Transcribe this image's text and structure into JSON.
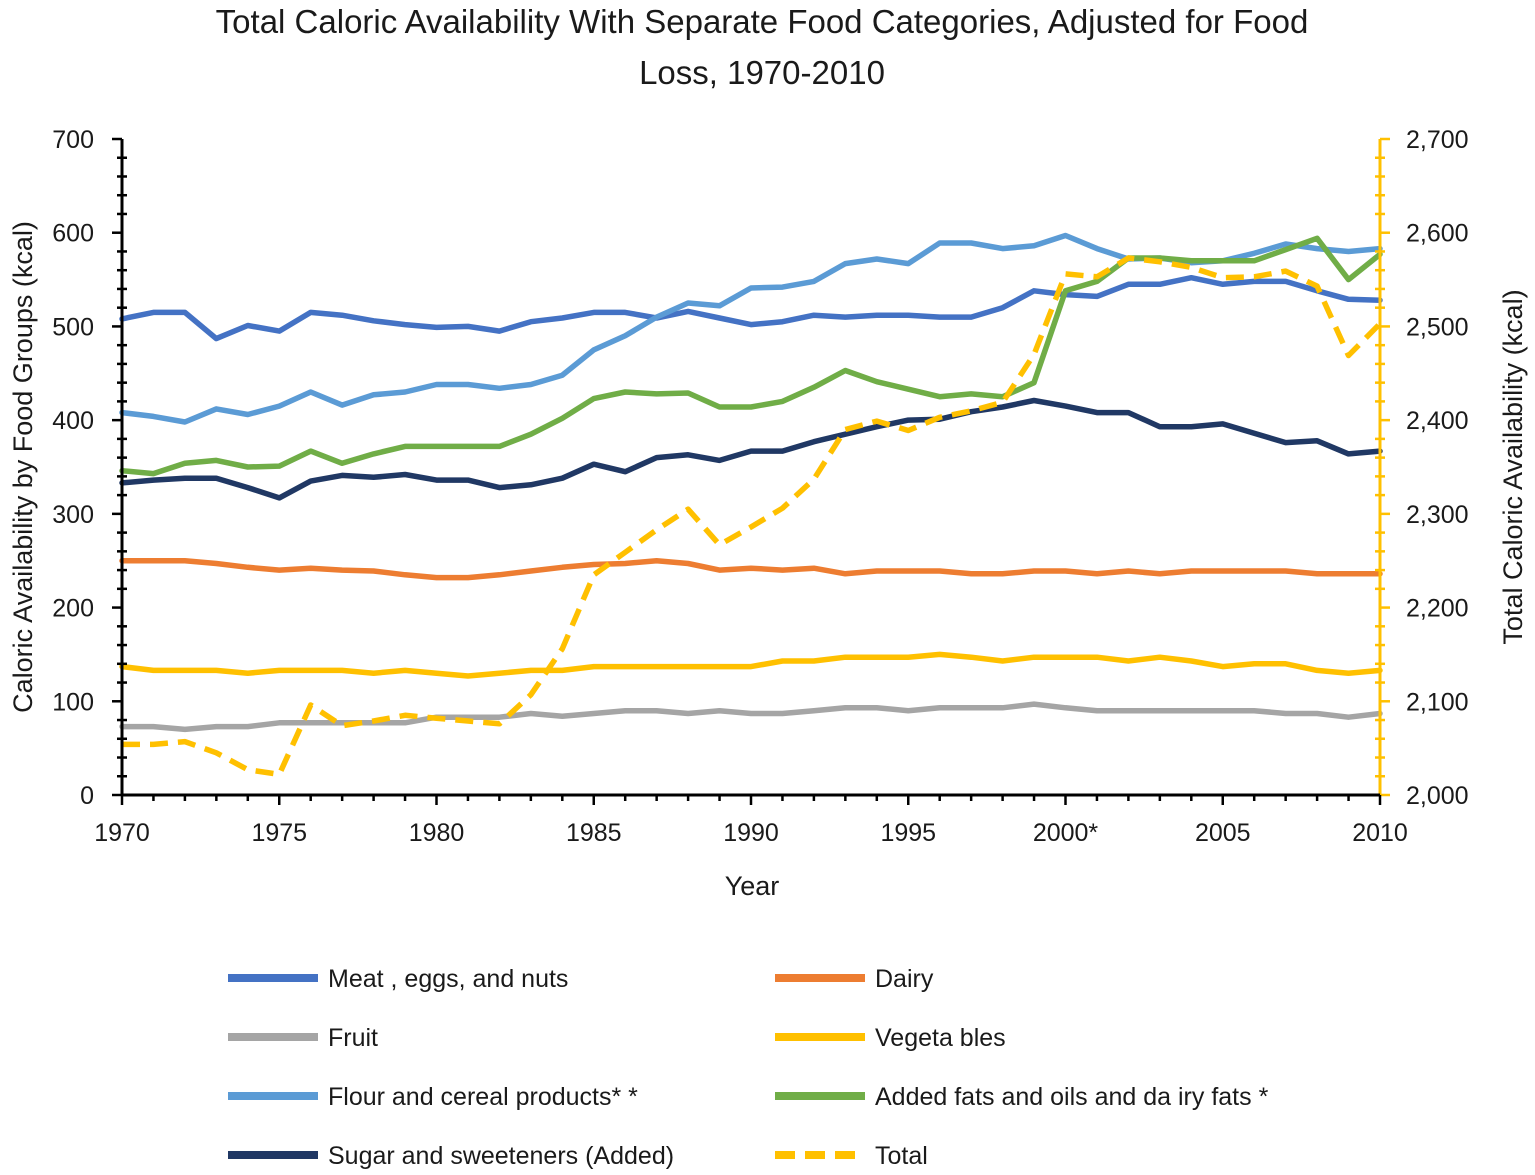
{
  "chart_data": {
    "type": "line",
    "title_lines": [
      "Total Caloric Availability With Separate Food Categories, Adjusted for Food",
      "Loss, 1970-2010"
    ],
    "xlabel": "Year",
    "ylabel_left": "Caloric Availability by Food Groups (kcal)",
    "ylabel_right": "Total Caloric Availability (kcal)",
    "xlim": [
      1970,
      2010
    ],
    "ylim_left": [
      0,
      700
    ],
    "ylim_right": [
      2000,
      2700
    ],
    "x_tick_labels": [
      "1970",
      "1975",
      "1980",
      "1985",
      "1990",
      "1995",
      "2000*",
      "2005",
      "2010"
    ],
    "y_left_tick_labels": [
      "0",
      "100",
      "200",
      "300",
      "400",
      "500",
      "600",
      "700"
    ],
    "y_right_tick_labels": [
      "2,000",
      "2,100",
      "2,200",
      "2,300",
      "2,400",
      "2,500",
      "2,600",
      "2,700"
    ],
    "grid": false,
    "legend_position": "bottom",
    "x": [
      1970,
      1971,
      1972,
      1973,
      1974,
      1975,
      1976,
      1977,
      1978,
      1979,
      1980,
      1981,
      1982,
      1983,
      1984,
      1985,
      1986,
      1987,
      1988,
      1989,
      1990,
      1991,
      1992,
      1993,
      1994,
      1995,
      1996,
      1997,
      1998,
      1999,
      2000,
      2001,
      2002,
      2003,
      2004,
      2005,
      2006,
      2007,
      2008,
      2009,
      2010
    ],
    "series": [
      {
        "name": "Meat, eggs, and nuts",
        "axis": "left",
        "color": "#4472C4",
        "dash": false,
        "values": [
          508,
          515,
          515,
          487,
          501,
          495,
          515,
          512,
          506,
          502,
          499,
          500,
          495,
          505,
          509,
          515,
          515,
          509,
          516,
          509,
          502,
          505,
          512,
          510,
          512,
          512,
          510,
          510,
          520,
          538,
          534,
          532,
          545,
          545,
          552,
          545,
          548,
          548,
          538,
          529,
          528
        ]
      },
      {
        "name": "Dairy",
        "axis": "left",
        "color": "#ED7D31",
        "dash": false,
        "values": [
          250,
          250,
          250,
          247,
          243,
          240,
          242,
          240,
          239,
          235,
          232,
          232,
          235,
          239,
          243,
          246,
          247,
          250,
          247,
          240,
          242,
          240,
          242,
          236,
          239,
          239,
          239,
          236,
          236,
          239,
          239,
          236,
          239,
          236,
          239,
          239,
          239,
          239,
          236,
          236,
          236
        ]
      },
      {
        "name": "Fruit",
        "axis": "left",
        "color": "#A5A5A5",
        "dash": false,
        "values": [
          73,
          73,
          70,
          73,
          73,
          77,
          77,
          77,
          77,
          77,
          83,
          83,
          83,
          87,
          84,
          87,
          90,
          90,
          87,
          90,
          87,
          87,
          90,
          93,
          93,
          90,
          93,
          93,
          93,
          97,
          93,
          90,
          90,
          90,
          90,
          90,
          90,
          87,
          87,
          83,
          87
        ]
      },
      {
        "name": "Vegetables",
        "axis": "left",
        "color": "#FFC000",
        "dash": false,
        "values": [
          137,
          133,
          133,
          133,
          130,
          133,
          133,
          133,
          130,
          133,
          130,
          127,
          130,
          133,
          133,
          137,
          137,
          137,
          137,
          137,
          137,
          143,
          143,
          147,
          147,
          147,
          150,
          147,
          143,
          147,
          147,
          147,
          143,
          147,
          143,
          137,
          140,
          140,
          133,
          130,
          133
        ]
      },
      {
        "name": "Flour and cereal products**",
        "axis": "left",
        "color": "#5B9BD5",
        "dash": false,
        "values": [
          408,
          404,
          398,
          412,
          406,
          415,
          430,
          416,
          427,
          430,
          438,
          438,
          434,
          438,
          448,
          475,
          490,
          510,
          525,
          522,
          541,
          542,
          548,
          567,
          572,
          567,
          589,
          589,
          583,
          586,
          597,
          583,
          572,
          573,
          568,
          570,
          578,
          588,
          583,
          580,
          583
        ]
      },
      {
        "name": "Added fats and oils and dairy fats*",
        "axis": "left",
        "color": "#70AD47",
        "dash": false,
        "values": [
          346,
          343,
          354,
          357,
          350,
          351,
          367,
          354,
          364,
          372,
          372,
          372,
          372,
          385,
          402,
          423,
          430,
          428,
          429,
          414,
          414,
          420,
          435,
          453,
          441,
          433,
          425,
          428,
          425,
          440,
          538,
          548,
          573,
          573,
          570,
          570,
          570,
          582,
          594,
          550,
          577
        ]
      },
      {
        "name": "Sugar and sweeteners (Added)",
        "axis": "left",
        "color": "#203864",
        "dash": false,
        "values": [
          333,
          336,
          338,
          338,
          328,
          317,
          335,
          341,
          339,
          342,
          336,
          336,
          328,
          331,
          338,
          353,
          345,
          360,
          363,
          357,
          367,
          367,
          377,
          385,
          393,
          400,
          401,
          409,
          414,
          421,
          415,
          408,
          408,
          393,
          393,
          396,
          386,
          376,
          378,
          364,
          367
        ]
      },
      {
        "name": "Total",
        "axis": "right",
        "color": "#FFC000",
        "dash": true,
        "values": [
          2054,
          2054,
          2057,
          2045,
          2027,
          2022,
          2096,
          2074,
          2079,
          2085,
          2082,
          2079,
          2076,
          2107,
          2156,
          2235,
          2259,
          2283,
          2305,
          2267,
          2286,
          2306,
          2337,
          2390,
          2399,
          2389,
          2403,
          2410,
          2419,
          2470,
          2556,
          2553,
          2573,
          2569,
          2563,
          2552,
          2553,
          2559,
          2543,
          2469,
          2503
        ]
      }
    ],
    "legend": [
      "Meat , eggs, and nuts",
      "Dairy",
      "Fruit",
      "Vegeta bles",
      "Flour and cereal products* *",
      "Added fats and oils and da iry fats *",
      "Sugar and sweeteners (Added)",
      "Total"
    ]
  }
}
